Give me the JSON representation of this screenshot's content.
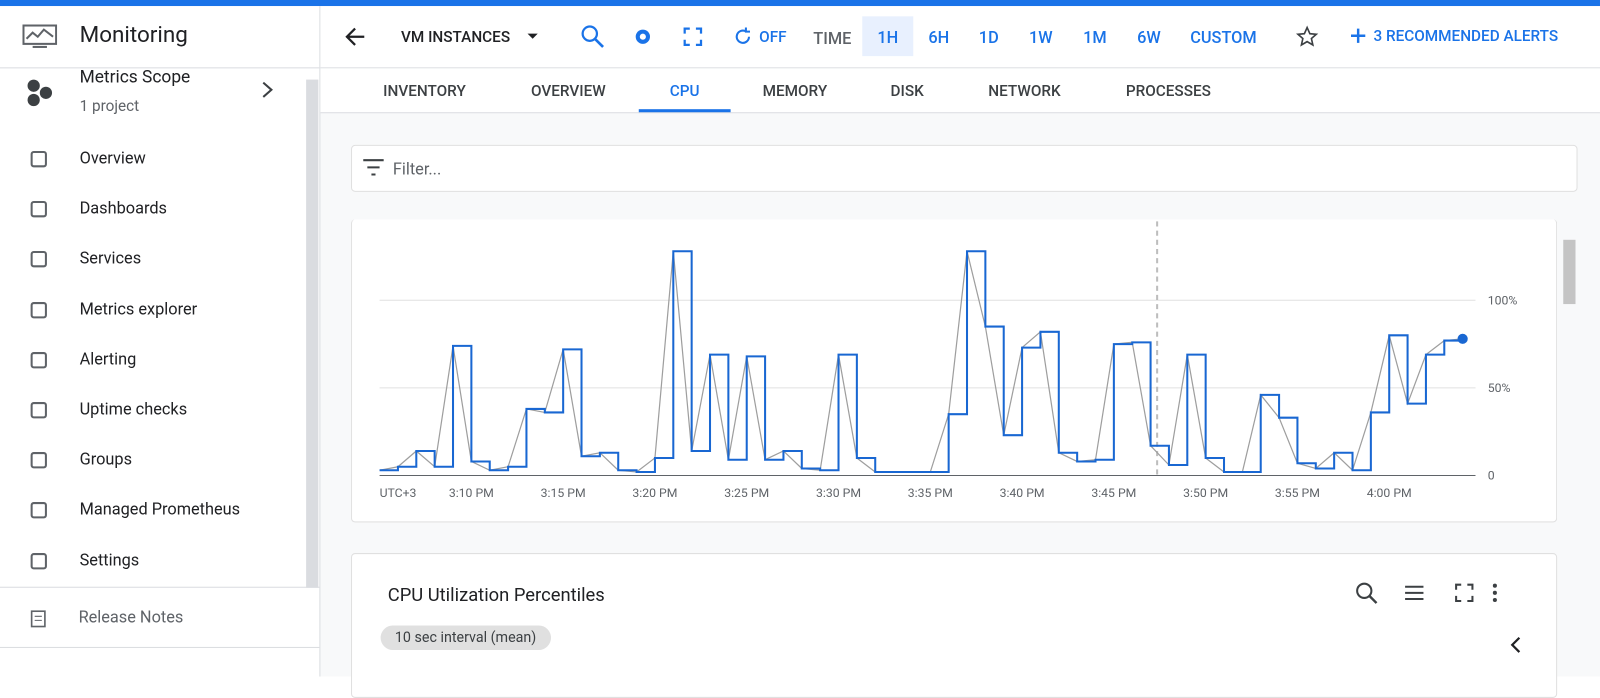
{
  "sidebar": {
    "title": "Monitoring",
    "scope": {
      "title": "Metrics Scope",
      "subtitle": "1 project"
    },
    "items": [
      "Overview",
      "Dashboards",
      "Services",
      "Metrics explorer",
      "Alerting",
      "Uptime checks",
      "Groups",
      "Managed Prometheus",
      "Settings"
    ],
    "footer": "Release Notes"
  },
  "toolbar": {
    "resource": "VM INSTANCES",
    "refresh": "OFF",
    "time_label": "TIME",
    "ranges": [
      "1H",
      "6H",
      "1D",
      "1W",
      "1M",
      "6W",
      "CUSTOM"
    ],
    "selected_range": 0,
    "alerts": "3 RECOMMENDED ALERTS"
  },
  "tabs": {
    "items": [
      "INVENTORY",
      "OVERVIEW",
      "CPU",
      "MEMORY",
      "DISK",
      "NETWORK",
      "PROCESSES"
    ],
    "selected": 2
  },
  "filter_placeholder": "Filter...",
  "chart_data": {
    "type": "line",
    "x_axis_label": "UTC+3",
    "x": [
      5,
      6,
      7,
      8,
      9,
      10,
      11,
      12,
      13,
      14,
      15,
      16,
      17,
      18,
      19,
      20,
      21,
      22,
      23,
      24,
      25,
      26,
      27,
      28,
      29,
      30,
      31,
      32,
      33,
      34,
      35,
      36,
      37,
      38,
      39,
      40,
      41,
      42,
      43,
      44,
      45,
      46,
      47,
      48,
      49,
      50,
      51,
      52,
      53,
      54,
      55,
      56,
      57,
      58,
      59,
      60,
      61,
      62,
      63,
      64
    ],
    "series": [
      {
        "color": "#9e9e9e",
        "step": false,
        "values": [
          3,
          5,
          14,
          5,
          74,
          8,
          3,
          5,
          38,
          36,
          72,
          11,
          13,
          3,
          2,
          10,
          128,
          14,
          69,
          9,
          68,
          9,
          14,
          4,
          3,
          69,
          10,
          2,
          2,
          2,
          2,
          35,
          128,
          85,
          23,
          73,
          82,
          13,
          8,
          9,
          75,
          76,
          17,
          6,
          69,
          10,
          2,
          2,
          46,
          33,
          7,
          4,
          13,
          3,
          36,
          80,
          41,
          69,
          77,
          78
        ]
      },
      {
        "color": "#1967d2",
        "step": true,
        "values": [
          3,
          5,
          14,
          5,
          74,
          8,
          3,
          5,
          38,
          36,
          72,
          11,
          13,
          3,
          2,
          10,
          128,
          14,
          69,
          9,
          68,
          9,
          14,
          4,
          3,
          69,
          10,
          2,
          2,
          2,
          2,
          35,
          128,
          85,
          23,
          73,
          82,
          13,
          8,
          9,
          75,
          76,
          17,
          6,
          69,
          10,
          2,
          2,
          46,
          33,
          7,
          4,
          13,
          3,
          36,
          80,
          41,
          69,
          77,
          78
        ]
      }
    ],
    "xlim": [
      5,
      64.7
    ],
    "ylim": [
      0,
      145
    ],
    "xticks": [
      {
        "value": 10,
        "label": "3:10 PM"
      },
      {
        "value": 15,
        "label": "3:15 PM"
      },
      {
        "value": 20,
        "label": "3:20 PM"
      },
      {
        "value": 25,
        "label": "3:25 PM"
      },
      {
        "value": 30,
        "label": "3:30 PM"
      },
      {
        "value": 35,
        "label": "3:35 PM"
      },
      {
        "value": 40,
        "label": "3:40 PM"
      },
      {
        "value": 45,
        "label": "3:45 PM"
      },
      {
        "value": 50,
        "label": "3:50 PM"
      },
      {
        "value": 55,
        "label": "3:55 PM"
      },
      {
        "value": 60,
        "label": "4:00 PM"
      }
    ],
    "yticks": [
      0,
      {
        "value": 50,
        "label": "50%"
      },
      {
        "value": 100,
        "label": "100%"
      }
    ],
    "grid": true
  },
  "card": {
    "title": "CPU Utilization Percentiles",
    "chip": "10 sec interval (mean)"
  }
}
